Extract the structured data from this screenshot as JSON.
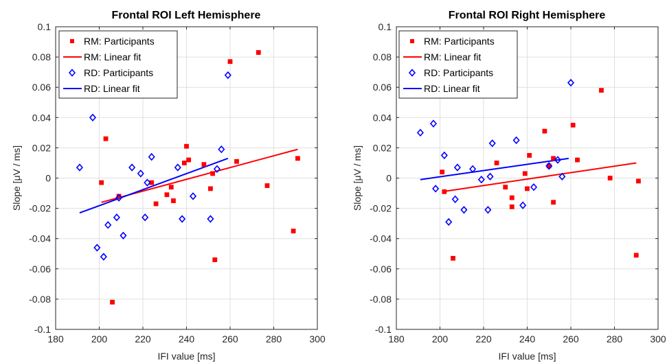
{
  "chart_data": [
    {
      "type": "scatter",
      "title": "Frontal ROI Left Hemisphere",
      "xlabel": "IFI value [ms]",
      "ylabel": "Slope [μV  /  ms]",
      "xlim": [
        180,
        300
      ],
      "ylim": [
        -0.1,
        0.1
      ],
      "xticks": [
        "180",
        "200",
        "220",
        "240",
        "260",
        "280",
        "300"
      ],
      "yticks": [
        "-0.1",
        "-0.08",
        "-0.06",
        "-0.04",
        "-0.02",
        "0",
        "0.02",
        "0.04",
        "0.06",
        "0.08",
        "0.1"
      ],
      "grid": true,
      "legend_position": "top-left",
      "series": [
        {
          "name": "RM: Participants",
          "kind": "points",
          "marker": "filled-square",
          "color": "#ff0000",
          "x": [
            203,
            201,
            206,
            209,
            224,
            226,
            231,
            233,
            234,
            239,
            240,
            241,
            248,
            251,
            252,
            253,
            260,
            263,
            273,
            277,
            289,
            291
          ],
          "y": [
            0.026,
            -0.003,
            -0.082,
            -0.012,
            -0.003,
            -0.017,
            -0.011,
            -0.006,
            -0.015,
            0.01,
            0.021,
            0.012,
            0.009,
            -0.007,
            0.003,
            -0.054,
            0.077,
            0.011,
            0.083,
            -0.005,
            -0.035,
            0.013
          ]
        },
        {
          "name": "RM: Linear fit",
          "kind": "line",
          "color": "#ff0000",
          "x": [
            201,
            291
          ],
          "y": [
            -0.016,
            0.019
          ]
        },
        {
          "name": "RD: Participants",
          "kind": "points",
          "marker": "open-diamond",
          "color": "#0000ff",
          "x": [
            191,
            197,
            199,
            202,
            204,
            208,
            209,
            211,
            215,
            219,
            221,
            222,
            224,
            236,
            238,
            243,
            251,
            254,
            256,
            259
          ],
          "y": [
            0.007,
            0.04,
            -0.046,
            -0.052,
            -0.031,
            -0.026,
            -0.013,
            -0.038,
            0.007,
            0.003,
            -0.026,
            -0.003,
            0.014,
            0.007,
            -0.027,
            -0.012,
            -0.027,
            0.006,
            0.019,
            0.068
          ]
        },
        {
          "name": "RD: Linear fit",
          "kind": "line",
          "color": "#0000ff",
          "x": [
            191,
            259
          ],
          "y": [
            -0.023,
            0.013
          ]
        }
      ]
    },
    {
      "type": "scatter",
      "title": "Frontal ROI Right Hemisphere",
      "xlabel": "IFI value [ms]",
      "ylabel": "Slope [μV  /  ms]",
      "xlim": [
        180,
        300
      ],
      "ylim": [
        -0.1,
        0.1
      ],
      "xticks": [
        "180",
        "200",
        "220",
        "240",
        "260",
        "280",
        "300"
      ],
      "yticks": [
        "-0.1",
        "-0.08",
        "-0.06",
        "-0.04",
        "-0.02",
        "0",
        "0.02",
        "0.04",
        "0.06",
        "0.08",
        "0.1"
      ],
      "grid": true,
      "legend_position": "top-left",
      "series": [
        {
          "name": "RM: Participants",
          "kind": "points",
          "marker": "filled-square",
          "color": "#ff0000",
          "x": [
            201,
            202,
            206,
            226,
            230,
            233,
            233,
            239,
            240,
            241,
            248,
            250,
            252,
            252,
            261,
            263,
            274,
            278,
            290,
            291
          ],
          "y": [
            0.004,
            -0.009,
            -0.053,
            0.01,
            -0.006,
            -0.013,
            -0.019,
            0.003,
            -0.007,
            0.015,
            0.031,
            0.008,
            -0.016,
            0.013,
            0.035,
            0.012,
            0.058,
            0.0,
            -0.051,
            -0.002
          ]
        },
        {
          "name": "RM: Linear fit",
          "kind": "line",
          "color": "#ff0000",
          "x": [
            201,
            290
          ],
          "y": [
            -0.009,
            0.01
          ]
        },
        {
          "name": "RD: Participants",
          "kind": "points",
          "marker": "open-diamond",
          "color": "#0000ff",
          "x": [
            191,
            197,
            198,
            202,
            204,
            207,
            208,
            211,
            215,
            219,
            222,
            223,
            224,
            235,
            238,
            243,
            250,
            254,
            256,
            260
          ],
          "y": [
            0.03,
            0.036,
            -0.007,
            0.015,
            -0.029,
            -0.014,
            0.007,
            -0.021,
            0.006,
            -0.001,
            -0.021,
            0.001,
            0.023,
            0.025,
            -0.018,
            -0.006,
            0.008,
            0.012,
            0.001,
            0.063
          ]
        },
        {
          "name": "RD: Linear fit",
          "kind": "line",
          "color": "#0000ff",
          "x": [
            191,
            259
          ],
          "y": [
            -0.001,
            0.013
          ]
        }
      ]
    }
  ]
}
